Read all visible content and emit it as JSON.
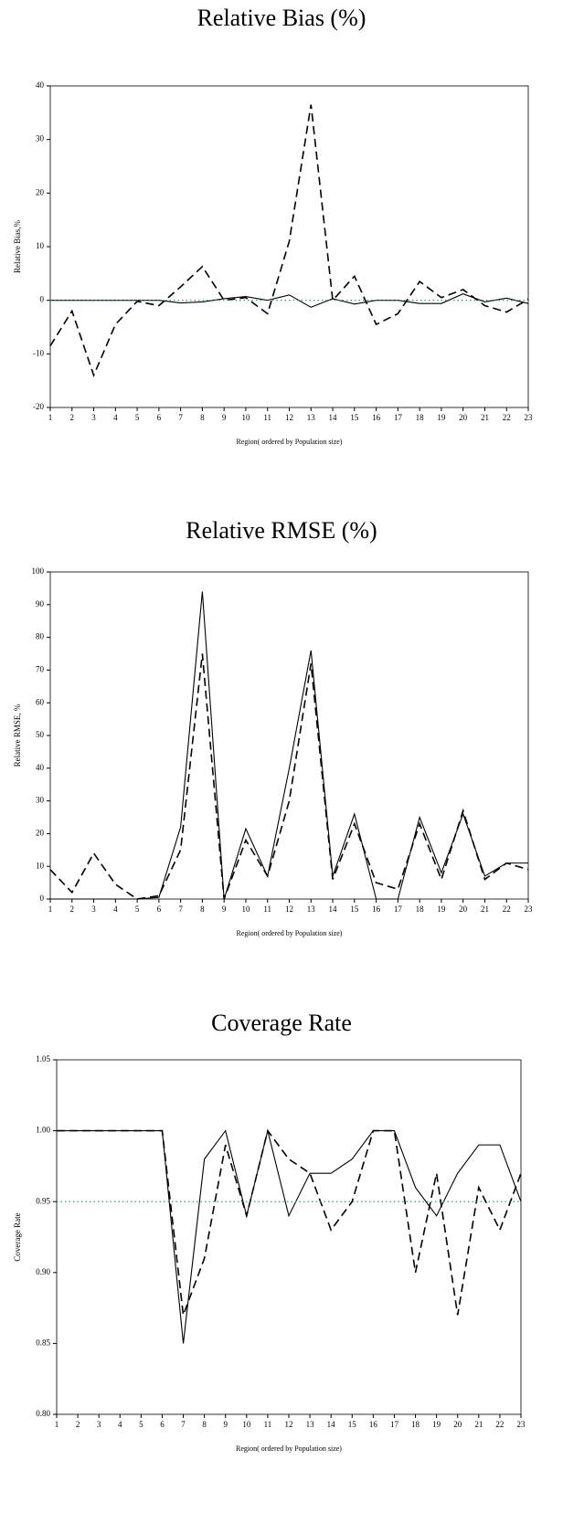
{
  "chart_data": [
    {
      "type": "line",
      "title": "Relative Bias (%)",
      "x_label": "Region( ordered by Population size)",
      "y_label": "Relative Bias,%",
      "x": [
        1,
        2,
        3,
        4,
        5,
        6,
        7,
        8,
        9,
        10,
        11,
        12,
        13,
        14,
        15,
        16,
        17,
        18,
        19,
        20,
        21,
        22,
        23
      ],
      "xlim": [
        1,
        23
      ],
      "ylim": [
        -20,
        40
      ],
      "yticks": [
        -20,
        -10,
        0,
        10,
        20,
        30,
        40
      ],
      "series": [
        {
          "color": "#000000",
          "dash": "dashed",
          "values": [
            -8.5,
            -2,
            -14,
            -4.5,
            -0.2,
            -1,
            2.5,
            6.3,
            0,
            0.5,
            -2.5,
            11,
            36.5,
            0,
            4.5,
            -4.5,
            -2.5,
            3.5,
            0.5,
            2,
            -1,
            -2.2,
            0.2
          ]
        },
        {
          "color": "#000000",
          "dash": "solid",
          "values": [
            0,
            0,
            0,
            0,
            0,
            0,
            -0.5,
            -0.3,
            0.3,
            0.7,
            0,
            1,
            -1.3,
            0.3,
            -0.7,
            0,
            0,
            -0.6,
            -0.6,
            1.2,
            -0.3,
            0.4,
            -0.6
          ]
        },
        {
          "color": "#2e8b57",
          "dash": "dotted",
          "values": [
            0,
            0,
            0,
            0,
            0,
            0,
            0,
            0,
            0,
            0,
            0,
            0,
            0,
            0,
            0,
            0,
            0,
            0,
            0,
            0,
            0,
            0,
            0
          ]
        }
      ]
    },
    {
      "type": "line",
      "title": "Relative RMSE (%)",
      "x_label": "Region( ordered by Population size)",
      "y_label": "Relative RMSE, %",
      "x": [
        1,
        2,
        3,
        4,
        5,
        6,
        7,
        8,
        9,
        10,
        11,
        12,
        13,
        14,
        15,
        16,
        17,
        18,
        19,
        20,
        21,
        22,
        23
      ],
      "xlim": [
        1,
        23
      ],
      "ylim": [
        0,
        100
      ],
      "yticks": [
        0,
        10,
        20,
        30,
        40,
        50,
        60,
        70,
        80,
        90,
        100
      ],
      "series": [
        {
          "color": "#000000",
          "dash": "solid",
          "values": [
            0,
            0,
            0,
            0,
            0,
            0.5,
            22,
            94,
            0,
            21.5,
            7,
            40,
            76,
            7,
            26,
            0,
            0,
            25,
            8,
            26,
            7,
            11,
            11
          ]
        },
        {
          "color": "#000000",
          "dash": "dashed",
          "values": [
            9,
            2,
            14,
            4.5,
            0,
            1,
            15,
            75,
            0,
            18,
            7,
            30,
            72,
            6,
            23,
            5,
            3,
            23,
            6,
            27,
            6,
            11,
            9
          ]
        }
      ]
    },
    {
      "type": "line",
      "title": "Coverage Rate",
      "x_label": "Region( ordered by Population size)",
      "y_label": "Coverage Rate",
      "x": [
        1,
        2,
        3,
        4,
        5,
        6,
        7,
        8,
        9,
        10,
        11,
        12,
        13,
        14,
        15,
        16,
        17,
        18,
        19,
        20,
        21,
        22,
        23
      ],
      "xlim": [
        1,
        23
      ],
      "ylim": [
        0.8,
        1.05
      ],
      "yticks": [
        {
          "value": 0.8,
          "label": "0.80"
        },
        0.85,
        {
          "value": 0.9,
          "label": "0.90"
        },
        0.95,
        {
          "value": 1,
          "label": "1.00"
        },
        1.05
      ],
      "series": [
        {
          "color": "#000000",
          "dash": "solid",
          "values": [
            1,
            1,
            1,
            1,
            1,
            1,
            0.85,
            0.98,
            1,
            0.94,
            1,
            0.94,
            0.97,
            0.97,
            0.98,
            1,
            1,
            0.96,
            0.94,
            0.97,
            0.99,
            0.99,
            0.95
          ]
        },
        {
          "color": "#000000",
          "dash": "dashed",
          "values": [
            1,
            1,
            1,
            1,
            1,
            1,
            0.87,
            0.91,
            0.99,
            0.94,
            1,
            0.98,
            0.97,
            0.93,
            0.95,
            1,
            1,
            0.9,
            0.97,
            0.87,
            0.96,
            0.93,
            0.97
          ]
        },
        {
          "color": "#2e8b57",
          "dash": "dotted",
          "values": [
            0.95,
            0.95,
            0.95,
            0.95,
            0.95,
            0.95,
            0.95,
            0.95,
            0.95,
            0.95,
            0.95,
            0.95,
            0.95,
            0.95,
            0.95,
            0.95,
            0.95,
            0.95,
            0.95,
            0.95,
            0.95,
            0.95,
            0.95
          ]
        }
      ]
    }
  ]
}
